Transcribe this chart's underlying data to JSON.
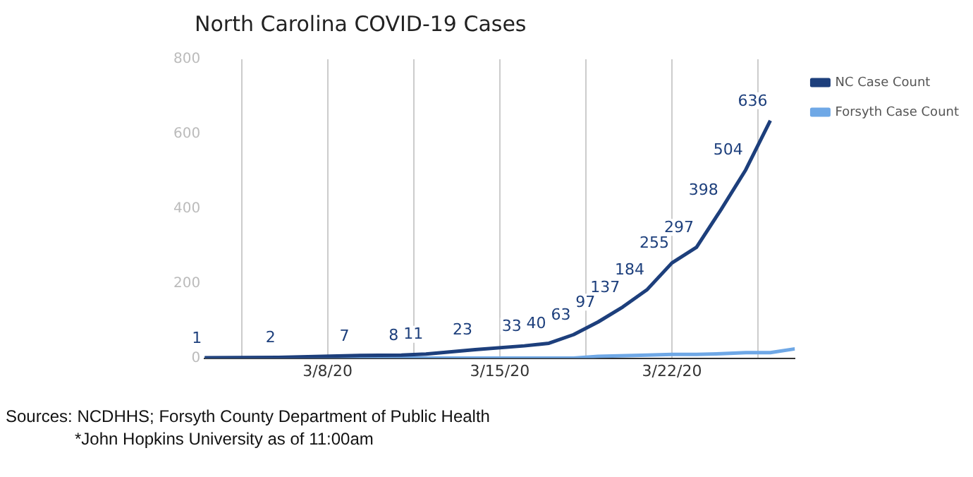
{
  "chart_data": {
    "type": "line",
    "title": "North Carolina COVID-19 Cases",
    "xlim": [
      "--03-03",
      "--03-27"
    ],
    "xticks": [
      {
        "value": "--03-04T12:00",
        "label": null
      },
      {
        "value": "--03-08",
        "label": "3/8/20"
      },
      {
        "value": "--03-11T12:00",
        "label": null
      },
      {
        "value": "--03-15",
        "label": "3/15/20"
      },
      {
        "value": "--03-18T12:00",
        "label": null
      },
      {
        "value": "--03-22",
        "label": "3/22/20"
      },
      {
        "value": "--03-25T12:00",
        "label": null
      }
    ],
    "ylim": [
      0,
      800
    ],
    "yticks": [
      0,
      200,
      400,
      600,
      800
    ],
    "grid": "x",
    "legend": "right",
    "marker": "none",
    "line_style": "solid",
    "series": [
      {
        "name": "NC Case Count",
        "color": "#1d3f7c",
        "x": [
          "--03-03",
          "--03-06",
          "--03-09",
          "--03-11",
          "--03-12",
          "--03-14",
          "--03-16",
          "--03-17",
          "--03-18",
          "--03-19",
          "--03-20",
          "--03-21",
          "--03-22",
          "--03-23",
          "--03-24",
          "--03-25",
          "--03-26"
        ],
        "values": [
          1,
          2,
          7,
          8,
          11,
          23,
          33,
          40,
          63,
          97,
          137,
          184,
          255,
          297,
          398,
          504,
          636
        ],
        "value_labels": [
          "1",
          "2",
          "7",
          "8",
          "11",
          "23",
          "33",
          "40",
          "63",
          "97",
          "137",
          "184",
          "255",
          "297",
          "398",
          "504",
          "636"
        ]
      },
      {
        "name": "Forsyth Case Count",
        "color": "#6fa8e6",
        "x": [
          "--03-03",
          "--03-18",
          "--03-19",
          "--03-21",
          "--03-22",
          "--03-23",
          "--03-24",
          "--03-25",
          "--03-26",
          "--03-27"
        ],
        "values": [
          0,
          0,
          5,
          8,
          10,
          10,
          12,
          15,
          15,
          25
        ]
      }
    ],
    "annotations": [
      "Sources: NCDHHS; Forsyth County Department of Public Health",
      "*John Hopkins University as of 11:00am"
    ]
  }
}
